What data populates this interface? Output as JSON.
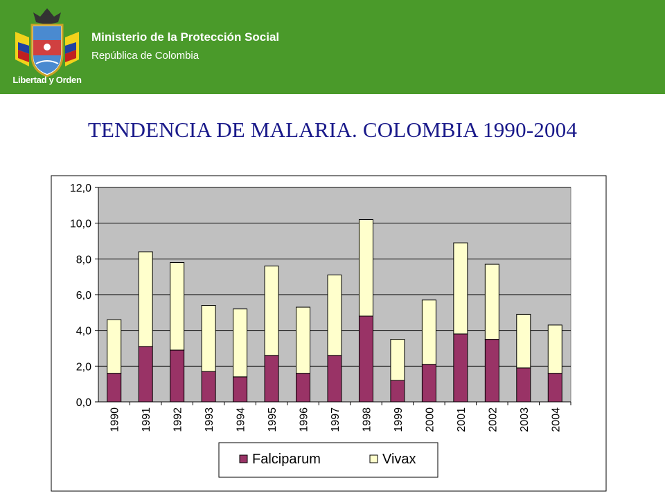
{
  "header": {
    "ministry": "Ministerio de la Protección Social",
    "republic": "República de Colombia",
    "motto": "Libertad y Orden",
    "emblem_icon": "colombia-coat-of-arms-icon",
    "background_color": "#4a9a2a"
  },
  "page": {
    "title": "TENDENCIA DE MALARIA.  COLOMBIA 1990-2004"
  },
  "chart_data": {
    "type": "bar",
    "stacked": true,
    "categories": [
      "1990",
      "1991",
      "1992",
      "1993",
      "1994",
      "1995",
      "1996",
      "1997",
      "1998",
      "1999",
      "2000",
      "2001",
      "2002",
      "2003",
      "2004"
    ],
    "series": [
      {
        "name": "Falciparum",
        "color": "#993366",
        "values": [
          1.6,
          3.1,
          2.9,
          1.7,
          1.4,
          2.6,
          1.6,
          2.6,
          4.8,
          1.2,
          2.1,
          3.8,
          3.5,
          1.9,
          1.6
        ]
      },
      {
        "name": "Vivax",
        "color": "#ffffcc",
        "values": [
          3.0,
          5.3,
          4.9,
          3.7,
          3.8,
          5.0,
          3.7,
          4.5,
          5.4,
          2.3,
          3.6,
          5.1,
          4.2,
          3.0,
          2.7
        ]
      }
    ],
    "ylim": [
      0,
      12
    ],
    "yticks": [
      "0,0",
      "2,0",
      "4,0",
      "6,0",
      "8,0",
      "10,0",
      "12,0"
    ],
    "yticks_values": [
      0,
      2,
      4,
      6,
      8,
      10,
      12
    ],
    "grid": true,
    "plot_background": "#c0c0c0",
    "legend_position": "bottom"
  }
}
